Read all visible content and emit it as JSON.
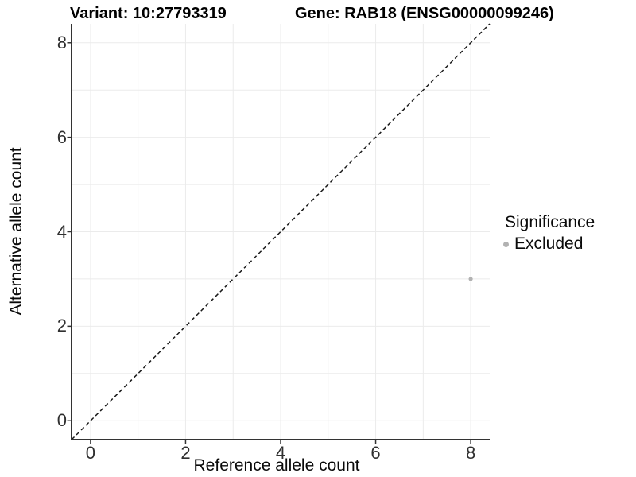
{
  "figure": {
    "title_left": "Variant: 10:27793319",
    "title_right": "Gene: RAB18 (ENSG00000099246)"
  },
  "axes": {
    "x": {
      "label": "Reference allele count"
    },
    "y": {
      "label": "Alternative allele count"
    }
  },
  "legend": {
    "title": "Significance",
    "items": [
      {
        "label": "Excluded",
        "color": "#b2b2b2"
      }
    ]
  },
  "colors": {
    "background": "#ffffff",
    "grid": "#ebebeb",
    "axis": "#333333",
    "tick_label": "#303030",
    "text": "#000000",
    "reference_line": "#1a1a1a",
    "point": "#b2b2b2"
  },
  "chart_data": {
    "type": "scatter",
    "title": "Variant: 10:27793319   Gene: RAB18 (ENSG00000099246)",
    "xlabel": "Reference allele count",
    "ylabel": "Alternative allele count",
    "xlim": [
      -0.4,
      8.4
    ],
    "ylim": [
      -0.4,
      8.4
    ],
    "x_ticks": [
      0,
      2,
      4,
      6,
      8
    ],
    "y_ticks": [
      0,
      2,
      4,
      6,
      8
    ],
    "grid": true,
    "grid_step": 1,
    "legend_position": "right",
    "series": [
      {
        "name": "Excluded",
        "color": "#b2b2b2",
        "points": [
          {
            "x": 8,
            "y": 3
          }
        ]
      }
    ],
    "reference_line": {
      "type": "identity",
      "equation": "y = x",
      "style": "dashed",
      "color": "#1a1a1a"
    }
  }
}
